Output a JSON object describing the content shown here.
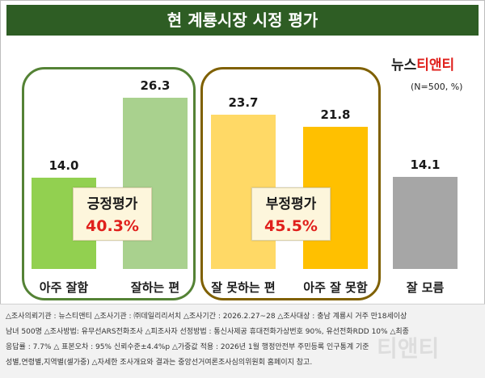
{
  "title": "현 계룡시장 시정 평가",
  "brand": {
    "part1": "뉴스",
    "part2": "티앤티",
    "color_dark": "#222222",
    "color_red": "#e0201c"
  },
  "sample_note": "(N=500, %)",
  "chart_data": {
    "type": "bar",
    "title": "현 계룡시장 시정 평가",
    "categories": [
      "아주 잘함",
      "잘하는 편",
      "잘 못하는 편",
      "아주 잘 못함",
      "잘 모름"
    ],
    "values": [
      14.0,
      26.3,
      23.7,
      21.8,
      14.1
    ],
    "value_labels": [
      "14.0",
      "26.3",
      "23.7",
      "21.8",
      "14.1"
    ],
    "colors": [
      "#92d050",
      "#a9d18e",
      "#ffd966",
      "#ffc000",
      "#a6a6a6"
    ],
    "ylim": [
      0,
      30
    ],
    "unit": "%",
    "groups": [
      {
        "label": "긍정평가",
        "value": "40.3%",
        "border_color": "#548235"
      },
      {
        "label": "부정평가",
        "value": "45.5%",
        "border_color": "#7f6000"
      }
    ]
  },
  "footer": {
    "lines": [
      "△조사의뢰기관 : 뉴스티앤티 △조사기관 : ㈜데일리리서치 △조사기간 : 2026.2.27~28 △조사대상 : 충남 계룡시 거주 만18세이상",
      "남녀 500명 △조사방법: 유무선ARS전화조사 △피조사자 선정방법 : 통신사제공 휴대전화가상번호 90%, 유선전화RDD 10% △최종",
      "응답률 : 7.7% △ 표본오차 : 95% 신뢰수준±4.4%p △가중값 적용 : 2026년 1월 행정안전부 주민등록 인구통계 기준",
      "성별,연령별,지역별(셀가중) △자세한 조사개요와 결과는 중앙선거여론조사심의위원회 홈페이지 참고."
    ],
    "watermark": "티앤티"
  }
}
